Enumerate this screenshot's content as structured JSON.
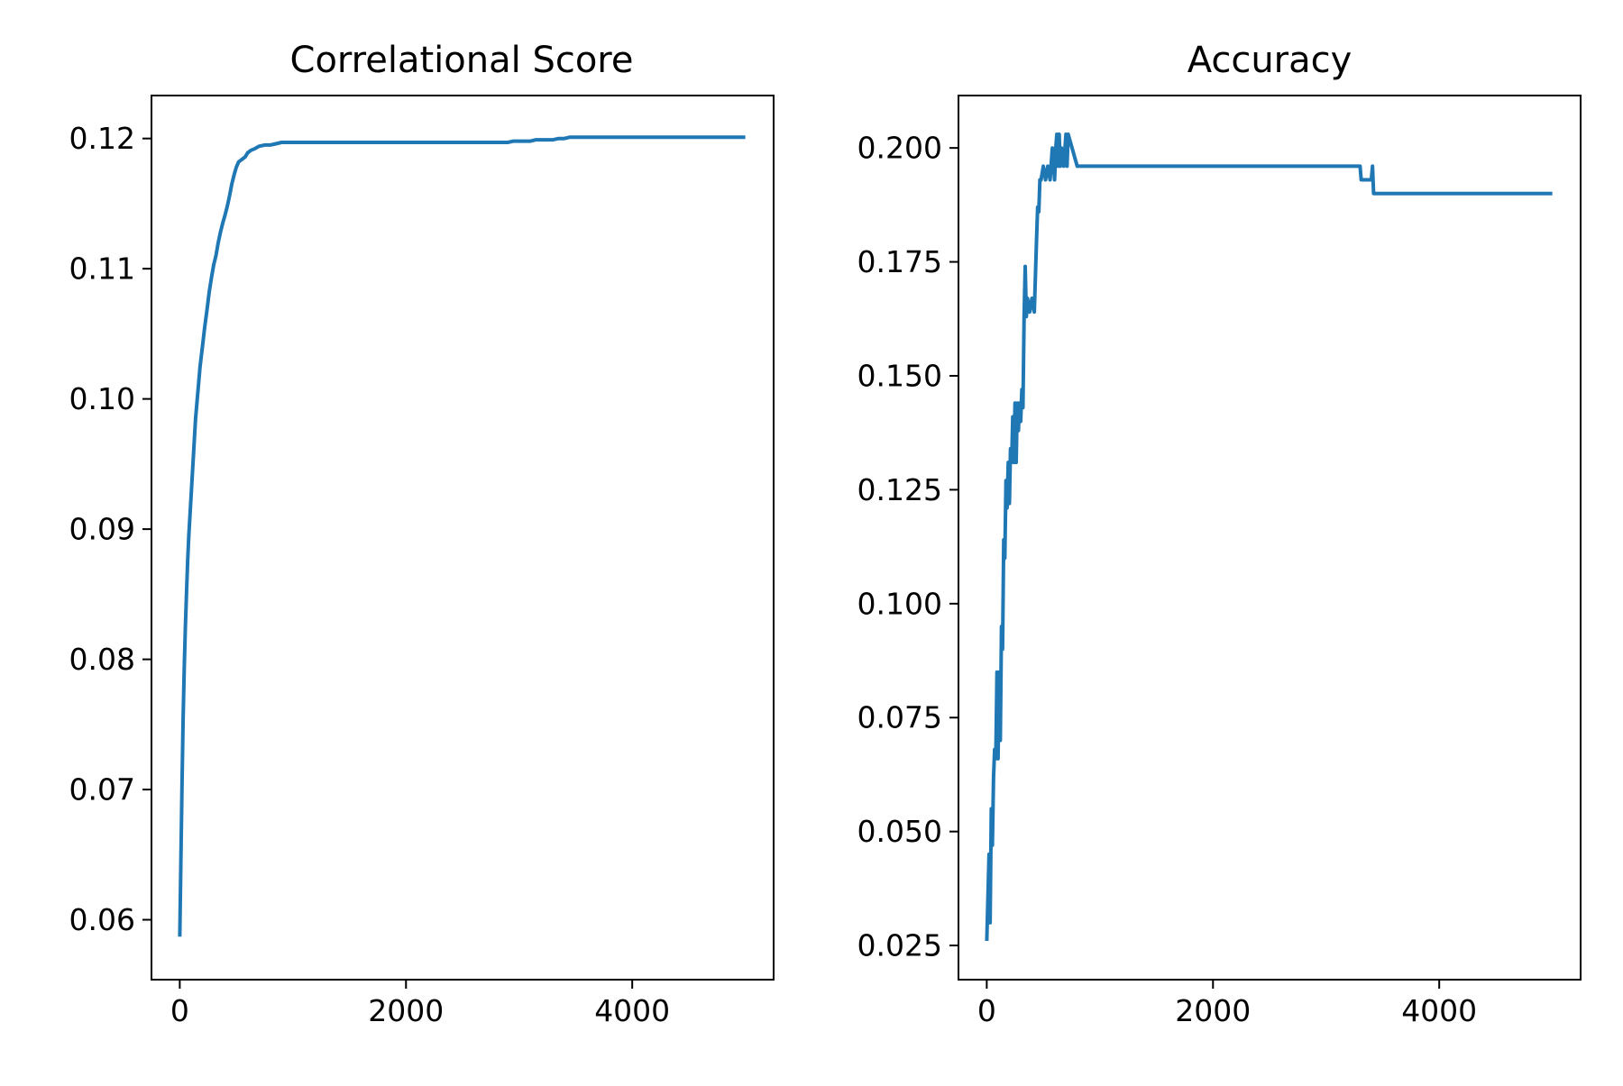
{
  "chart_data": [
    {
      "type": "line",
      "title": "Correlational Score",
      "xlabel": "",
      "ylabel": "",
      "xlim": [
        -250,
        5250
      ],
      "ylim": [
        0.0554,
        0.1233
      ],
      "xticks": [
        0,
        2000,
        4000
      ],
      "xtick_labels": [
        "0",
        "2000",
        "4000"
      ],
      "yticks": [
        0.06,
        0.07,
        0.08,
        0.09,
        0.1,
        0.11,
        0.12
      ],
      "ytick_labels": [
        "0.06",
        "0.07",
        "0.08",
        "0.09",
        "0.10",
        "0.11",
        "0.12"
      ],
      "grid": false,
      "legend": "none",
      "colors": {
        "line": "#1f77b4",
        "axes": "#000000"
      },
      "series": [
        {
          "x": [
            0,
            10,
            20,
            30,
            40,
            50,
            60,
            70,
            80,
            100,
            120,
            140,
            160,
            180,
            200,
            220,
            240,
            260,
            280,
            300,
            320,
            340,
            360,
            380,
            400,
            420,
            440,
            460,
            480,
            500,
            520,
            550,
            580,
            600,
            630,
            660,
            700,
            750,
            800,
            850,
            900,
            1000,
            1500,
            2000,
            2500,
            2900,
            2950,
            3000,
            3100,
            3150,
            3200,
            3300,
            3350,
            3400,
            3450,
            3500,
            4000,
            4500,
            5000
          ],
          "y": [
            0.0587,
            0.0645,
            0.0705,
            0.0755,
            0.0795,
            0.0825,
            0.0852,
            0.0875,
            0.0895,
            0.0925,
            0.0955,
            0.0985,
            0.1005,
            0.1025,
            0.104,
            0.1055,
            0.1068,
            0.1082,
            0.1093,
            0.1103,
            0.111,
            0.112,
            0.1128,
            0.1135,
            0.1141,
            0.1148,
            0.1156,
            0.1165,
            0.1172,
            0.1178,
            0.1182,
            0.1184,
            0.1186,
            0.1189,
            0.1191,
            0.1192,
            0.1194,
            0.1195,
            0.1195,
            0.1196,
            0.1197,
            0.1197,
            0.1197,
            0.1197,
            0.1197,
            0.1197,
            0.1198,
            0.1198,
            0.1198,
            0.1199,
            0.1199,
            0.1199,
            0.12,
            0.12,
            0.1201,
            0.1201,
            0.1201,
            0.1201,
            0.1201
          ]
        }
      ]
    },
    {
      "type": "line",
      "title": "Accuracy",
      "xlabel": "",
      "ylabel": "",
      "xlim": [
        -250,
        5250
      ],
      "ylim": [
        0.0175,
        0.2115
      ],
      "xticks": [
        0,
        2000,
        4000
      ],
      "xtick_labels": [
        "0",
        "2000",
        "4000"
      ],
      "yticks": [
        0.025,
        0.05,
        0.075,
        0.1,
        0.125,
        0.15,
        0.175,
        0.2
      ],
      "ytick_labels": [
        "0.025",
        "0.050",
        "0.075",
        "0.100",
        "0.125",
        "0.150",
        "0.175",
        "0.200"
      ],
      "grid": false,
      "legend": "none",
      "colors": {
        "line": "#1f77b4",
        "axes": "#000000"
      },
      "series": [
        {
          "x": [
            0,
            10,
            20,
            30,
            40,
            50,
            60,
            70,
            80,
            90,
            100,
            110,
            120,
            130,
            140,
            150,
            160,
            170,
            180,
            190,
            200,
            210,
            220,
            230,
            240,
            250,
            260,
            270,
            280,
            290,
            300,
            310,
            320,
            330,
            340,
            350,
            360,
            380,
            400,
            420,
            440,
            450,
            460,
            470,
            480,
            500,
            520,
            540,
            560,
            580,
            600,
            610,
            620,
            630,
            640,
            650,
            660,
            680,
            700,
            710,
            720,
            800,
            1000,
            2000,
            3000,
            3300,
            3310,
            3350,
            3400,
            3410,
            3420,
            3430,
            4000,
            5000
          ],
          "y": [
            0.026,
            0.035,
            0.045,
            0.03,
            0.055,
            0.047,
            0.062,
            0.068,
            0.066,
            0.085,
            0.066,
            0.085,
            0.07,
            0.095,
            0.09,
            0.114,
            0.11,
            0.127,
            0.121,
            0.131,
            0.122,
            0.134,
            0.131,
            0.141,
            0.131,
            0.144,
            0.131,
            0.144,
            0.138,
            0.144,
            0.14,
            0.147,
            0.143,
            0.163,
            0.174,
            0.163,
            0.167,
            0.164,
            0.167,
            0.164,
            0.18,
            0.187,
            0.186,
            0.193,
            0.193,
            0.196,
            0.193,
            0.196,
            0.193,
            0.2,
            0.193,
            0.2,
            0.203,
            0.196,
            0.203,
            0.196,
            0.2,
            0.196,
            0.203,
            0.196,
            0.203,
            0.196,
            0.196,
            0.196,
            0.196,
            0.196,
            0.193,
            0.193,
            0.193,
            0.196,
            0.19,
            0.19,
            0.19,
            0.19
          ]
        }
      ]
    }
  ]
}
